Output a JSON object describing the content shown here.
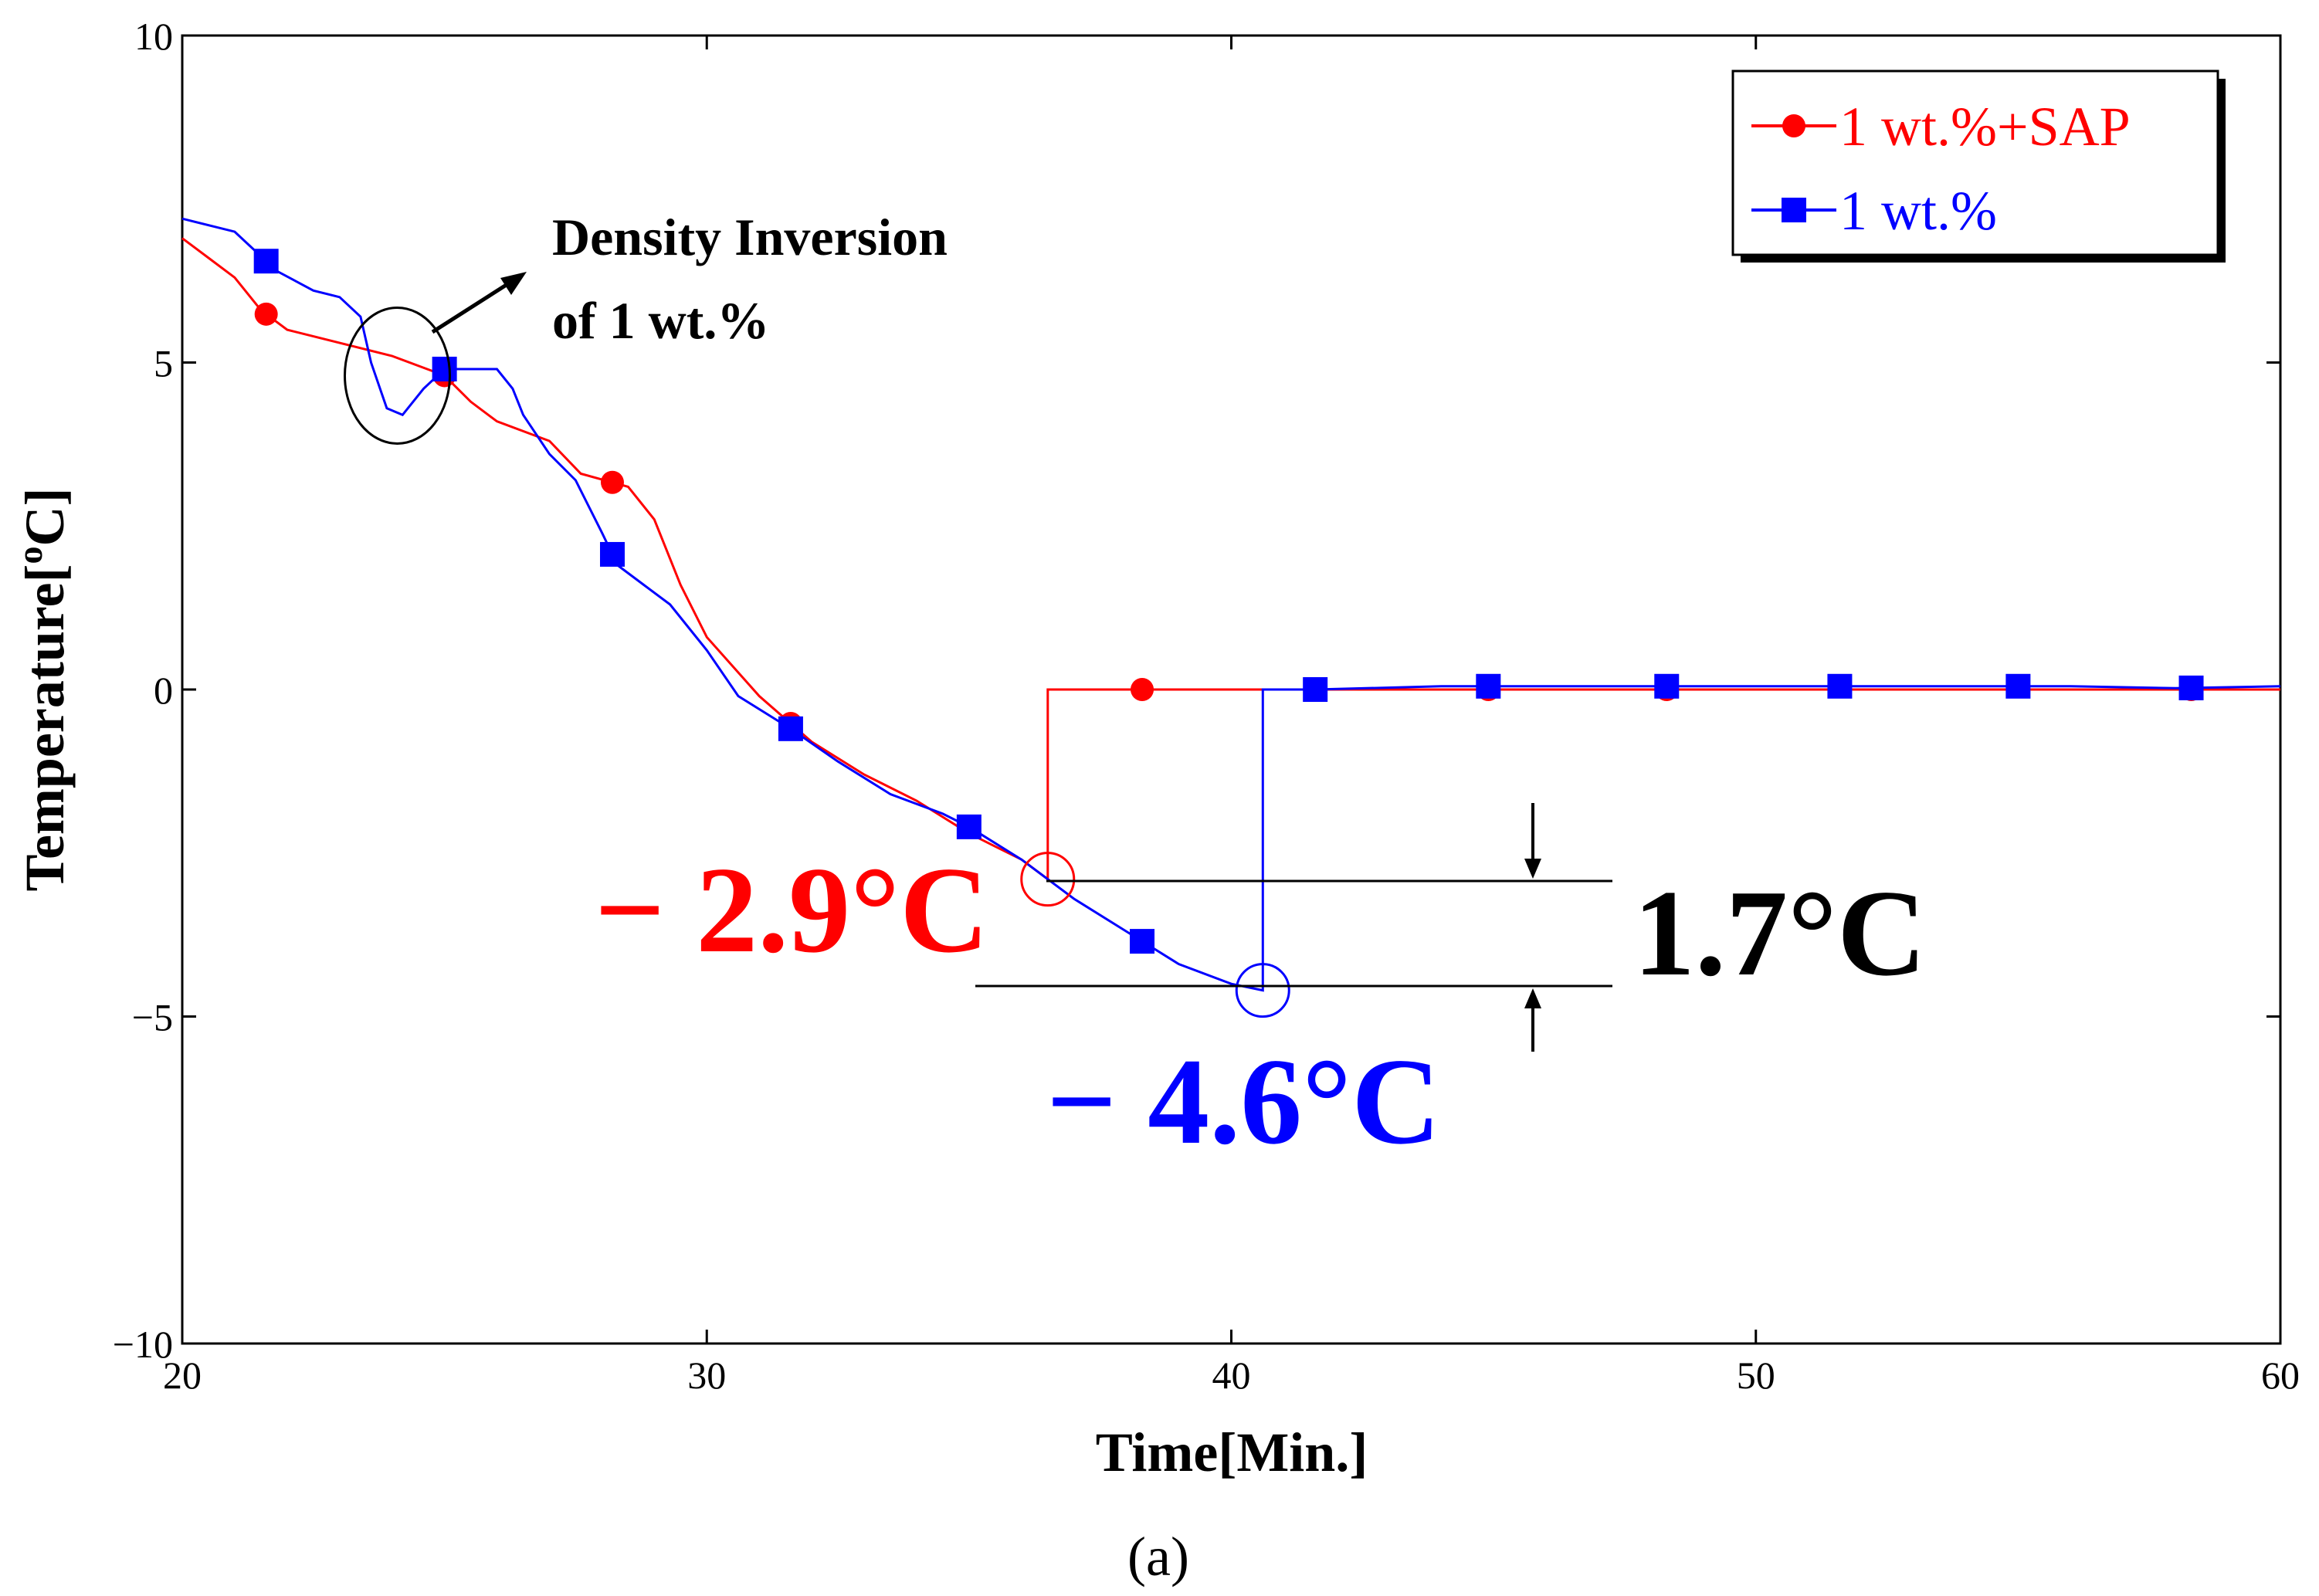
{
  "chart_data": {
    "type": "line",
    "title": "",
    "xlabel": "Time[Min.]",
    "ylabel": "Temperature[",
    "ylabel_sup": "o",
    "ylabel_unit": "C]",
    "xlim": [
      20,
      60
    ],
    "ylim": [
      -10,
      10
    ],
    "xticks": [
      20,
      30,
      40,
      50,
      60
    ],
    "xtick_labels": [
      "20",
      "30",
      "40",
      "50",
      "60"
    ],
    "yticks": [
      -10,
      -5,
      0,
      5,
      10
    ],
    "ytick_labels": [
      "−10",
      "−5",
      "0",
      "5",
      "10"
    ],
    "legend_position": "top-right",
    "series": [
      {
        "name": "1 wt.%+SAP",
        "color": "#ff0000",
        "marker": "circle",
        "points": [
          [
            20,
            6.9
          ],
          [
            20.5,
            6.6
          ],
          [
            21,
            6.3
          ],
          [
            21.5,
            5.8
          ],
          [
            22,
            5.5
          ],
          [
            22.5,
            5.4
          ],
          [
            23,
            5.3
          ],
          [
            24,
            5.1
          ],
          [
            25,
            4.8
          ],
          [
            25.5,
            4.4
          ],
          [
            26,
            4.1
          ],
          [
            27,
            3.8
          ],
          [
            27.6,
            3.3
          ],
          [
            28.5,
            3.1
          ],
          [
            29,
            2.6
          ],
          [
            29.5,
            1.6
          ],
          [
            30,
            0.8
          ],
          [
            31,
            -0.1
          ],
          [
            32,
            -0.8
          ],
          [
            33,
            -1.3
          ],
          [
            34,
            -1.7
          ],
          [
            35,
            -2.2
          ],
          [
            35.5,
            -2.4
          ],
          [
            36,
            -2.6
          ],
          [
            36.5,
            -2.9
          ],
          [
            36.5,
            0
          ],
          [
            38,
            0
          ],
          [
            40,
            0
          ],
          [
            42,
            0
          ],
          [
            44,
            0
          ],
          [
            46,
            0
          ],
          [
            48,
            0
          ],
          [
            50,
            0
          ],
          [
            52,
            0
          ],
          [
            54,
            0
          ],
          [
            56,
            0
          ],
          [
            58,
            0
          ],
          [
            60,
            0
          ]
        ],
        "markers_x": [
          21.6,
          25,
          28.2,
          31.6,
          38.3,
          44.9,
          48.3,
          58.3
        ]
      },
      {
        "name": "1 wt.%",
        "color": "#0000ff",
        "marker": "square",
        "points": [
          [
            20,
            7.2
          ],
          [
            21,
            7.0
          ],
          [
            21.8,
            6.4
          ],
          [
            22.5,
            6.1
          ],
          [
            23,
            6.0
          ],
          [
            23.4,
            5.7
          ],
          [
            23.6,
            5.0
          ],
          [
            23.9,
            4.3
          ],
          [
            24.2,
            4.2
          ],
          [
            24.6,
            4.6
          ],
          [
            25,
            4.9
          ],
          [
            25.6,
            4.9
          ],
          [
            26,
            4.9
          ],
          [
            26.3,
            4.6
          ],
          [
            26.5,
            4.2
          ],
          [
            27,
            3.6
          ],
          [
            27.5,
            3.2
          ],
          [
            28,
            2.4
          ],
          [
            28.3,
            1.9
          ],
          [
            28.8,
            1.6
          ],
          [
            29.3,
            1.3
          ],
          [
            30,
            0.6
          ],
          [
            30.6,
            -0.1
          ],
          [
            31.6,
            -0.6
          ],
          [
            32.5,
            -1.1
          ],
          [
            33.5,
            -1.6
          ],
          [
            34.5,
            -1.9
          ],
          [
            35,
            -2.1
          ],
          [
            36,
            -2.6
          ],
          [
            37,
            -3.2
          ],
          [
            38,
            -3.7
          ],
          [
            39,
            -4.2
          ],
          [
            40,
            -4.5
          ],
          [
            40.6,
            -4.6
          ],
          [
            40.6,
            0
          ],
          [
            41.6,
            0
          ],
          [
            44,
            0.05
          ],
          [
            46,
            0.05
          ],
          [
            48,
            0.05
          ],
          [
            50,
            0.05
          ],
          [
            52,
            0.05
          ],
          [
            54,
            0.05
          ],
          [
            56,
            0.05
          ],
          [
            58,
            0.02
          ],
          [
            60,
            0.05
          ]
        ],
        "markers_x": [
          21.6,
          25,
          28.2,
          31.6,
          35,
          38.3,
          41.6,
          44.9,
          48.3,
          51.6,
          55,
          58.3
        ]
      }
    ],
    "annotations": {
      "density_note_line1": "Density Inversion",
      "density_note_line2": "of 1 wt.%",
      "density_circle_center": [
        24.1,
        4.8
      ],
      "red_callout": "− 2.9°C",
      "red_point": [
        36.5,
        -2.9
      ],
      "blue_callout": "− 4.6°C",
      "blue_point": [
        40.6,
        -4.6
      ],
      "difference_label": "1.7°C"
    },
    "panel_label": "(a)"
  }
}
